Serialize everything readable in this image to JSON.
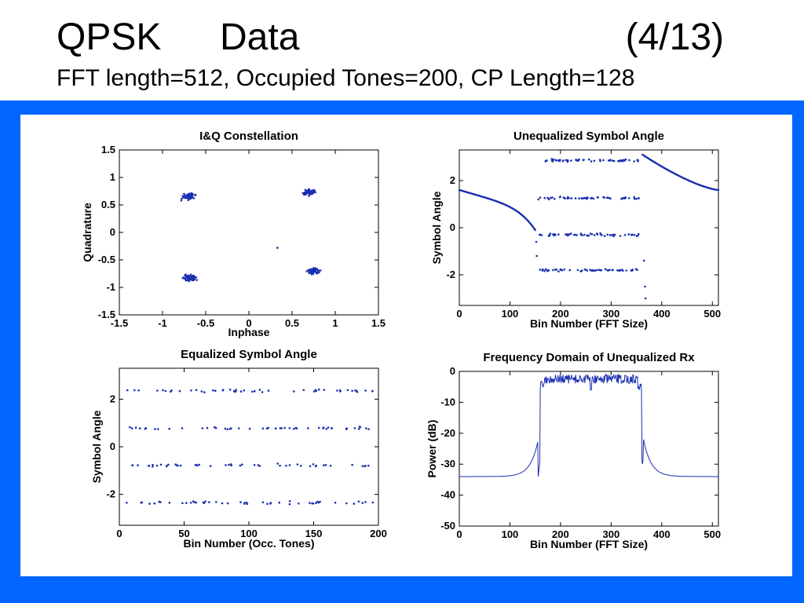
{
  "slide": {
    "title_left": "QPSK",
    "title_word2": "Data",
    "title_right": "(4/13)",
    "subtitle": "FFT length=512, Occupied Tones=200, CP Length=128"
  },
  "colors": {
    "panel": "#0066ff",
    "series": "#1a2fb0"
  },
  "chart_data": [
    {
      "type": "scatter",
      "title": "I&Q Constellation",
      "xlabel": "Inphase",
      "ylabel": "Quadrature",
      "xlim": [
        -1.5,
        1.5
      ],
      "ylim": [
        -1.5,
        1.5
      ],
      "xticks": [
        -1.5,
        -1,
        -0.5,
        0,
        0.5,
        1,
        1.5
      ],
      "yticks": [
        -1.5,
        -1,
        -0.5,
        0,
        0.5,
        1,
        1.5
      ],
      "xtick_labels": [
        "-1.5",
        "-1",
        "-0.5",
        "0",
        "0.5",
        "1",
        "1.5"
      ],
      "ytick_labels": [
        "-1.5",
        "-1",
        "-0.5",
        "0",
        "0.5",
        "1",
        "1.5"
      ],
      "clusters": [
        {
          "cx": -0.7,
          "cy": 0.65,
          "spread": 0.1
        },
        {
          "cx": 0.7,
          "cy": 0.73,
          "spread": 0.1
        },
        {
          "cx": -0.68,
          "cy": -0.83,
          "spread": 0.1
        },
        {
          "cx": 0.75,
          "cy": -0.7,
          "spread": 0.1
        }
      ],
      "outliers": [
        [
          0.33,
          -0.28
        ]
      ],
      "grid": false
    },
    {
      "type": "scatter",
      "title": "Unequalized Symbol Angle",
      "xlabel": "Bin Number (FFT Size)",
      "ylabel": "Symbol Angle",
      "xlim": [
        0,
        512
      ],
      "ylim": [
        -3.3,
        3.3
      ],
      "xticks": [
        0,
        100,
        200,
        300,
        400,
        500
      ],
      "yticks": [
        -2,
        0,
        2
      ],
      "xtick_labels": [
        "0",
        "100",
        "200",
        "300",
        "400",
        "500"
      ],
      "ytick_labels": [
        "-2",
        "0",
        "2"
      ],
      "left_curve": {
        "x_range": [
          0,
          150
        ],
        "y_start": 1.6,
        "y_end": -0.1
      },
      "right_curve": {
        "x_range": [
          362,
          512
        ],
        "y_start": 3.1,
        "y_end": 1.6
      },
      "occupied_bands": {
        "x_range": [
          150,
          362
        ],
        "levels": [
          2.85,
          1.25,
          -0.3,
          -1.8
        ]
      },
      "edge_points": [
        [
          152,
          -0.6
        ],
        [
          153,
          -1.2
        ],
        [
          365,
          -1.4
        ],
        [
          367,
          -2.5
        ],
        [
          368,
          -3.0
        ]
      ],
      "grid": false
    },
    {
      "type": "scatter",
      "title": "Equalized Symbol Angle",
      "xlabel": "Bin Number (Occ. Tones)",
      "ylabel": "Symbol Angle",
      "xlim": [
        0,
        200
      ],
      "ylim": [
        -3.3,
        3.3
      ],
      "xticks": [
        0,
        50,
        100,
        150,
        200
      ],
      "yticks": [
        -2,
        0,
        2
      ],
      "xtick_labels": [
        "0",
        "50",
        "100",
        "150",
        "200"
      ],
      "ytick_labels": [
        "-2",
        "0",
        "2"
      ],
      "levels": [
        2.35,
        0.78,
        -0.78,
        -2.35
      ],
      "grid": false
    },
    {
      "type": "line",
      "title": "Frequency Domain of Unequalized Rx",
      "xlabel": "Bin Number (FFT Size)",
      "ylabel": "Power (dB)",
      "xlim": [
        0,
        512
      ],
      "ylim": [
        -50,
        0
      ],
      "xticks": [
        0,
        100,
        200,
        300,
        400,
        500
      ],
      "yticks": [
        -50,
        -40,
        -30,
        -20,
        -10,
        0
      ],
      "xtick_labels": [
        "0",
        "100",
        "200",
        "300",
        "400",
        "500"
      ],
      "ytick_labels": [
        "-50",
        "-40",
        "-30",
        "-20",
        "-10",
        "0"
      ],
      "floor_db": -34,
      "passband": {
        "x_range": [
          160,
          360
        ],
        "low_db": -4,
        "high_db": -1
      },
      "notch": {
        "x": 260,
        "db": -6
      },
      "grid": false
    }
  ]
}
